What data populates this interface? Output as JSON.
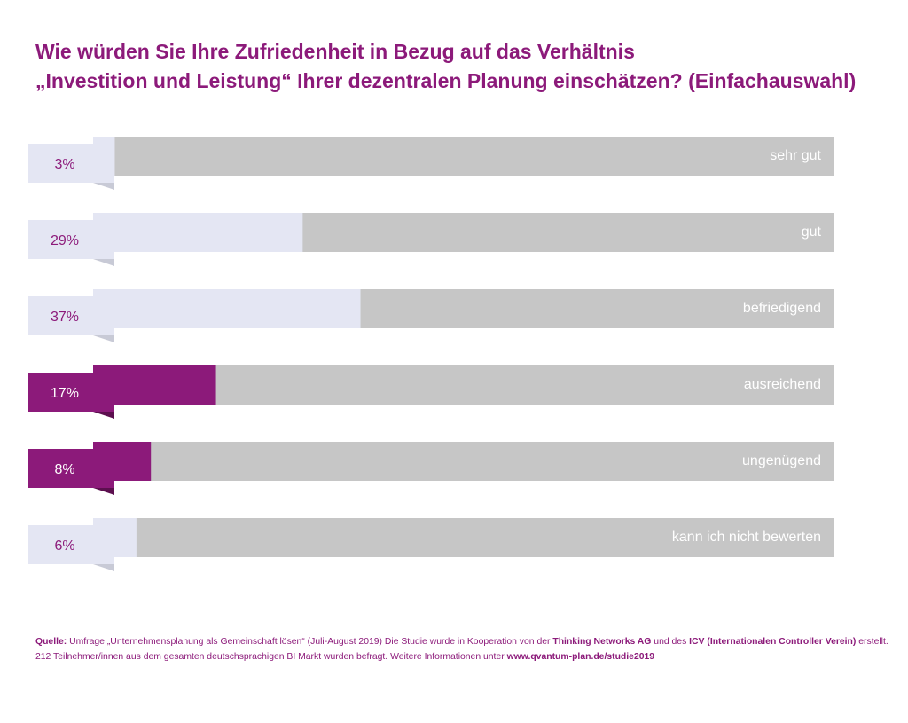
{
  "colors": {
    "title": "#8c1a7a",
    "track": "#c6c6c6",
    "fill_light": "#e4e6f3",
    "fold_light": "#c8cad6",
    "fill_accent": "#8c1a7a",
    "fold_accent": "#5c0f4f",
    "category_label": "#ffffff"
  },
  "title": {
    "line1": "Wie würden Sie Ihre Zufriedenheit in Bezug auf das Verhältnis",
    "line2": "„Investition und Leistung“ Ihrer dezentralen Planung  einschätzen? (Einfachauswahl)"
  },
  "chart_data": {
    "type": "bar",
    "orientation": "horizontal",
    "categories": [
      "sehr gut",
      "gut",
      "befriedigend",
      "ausreichend",
      "ungenügend",
      "kann ich nicht bewerten"
    ],
    "values": [
      3,
      29,
      37,
      17,
      8,
      6
    ],
    "value_labels": [
      "3%",
      "29%",
      "37%",
      "17%",
      "8%",
      "6%"
    ],
    "highlighted": [
      false,
      false,
      false,
      true,
      true,
      false
    ],
    "unit": "%",
    "xlim": [
      0,
      100
    ]
  },
  "source": {
    "label": "Quelle:",
    "text1": " Umfrage „Unternehmensplanung als Gemeinschaft lösen“ (Juli-August 2019)  Die Studie wurde in Kooperation von der ",
    "org1": "Thinking Networks AG",
    "text2": " und des ",
    "org2": "ICV  (Internationalen Controller Verein)",
    "text3": " erstellt. 212 Teilnehmer/innen aus dem gesamten deutschsprachigen BI Markt wurden befragt. Weitere Informationen unter ",
    "url": "www.qvantum-plan.de/studie2019"
  }
}
